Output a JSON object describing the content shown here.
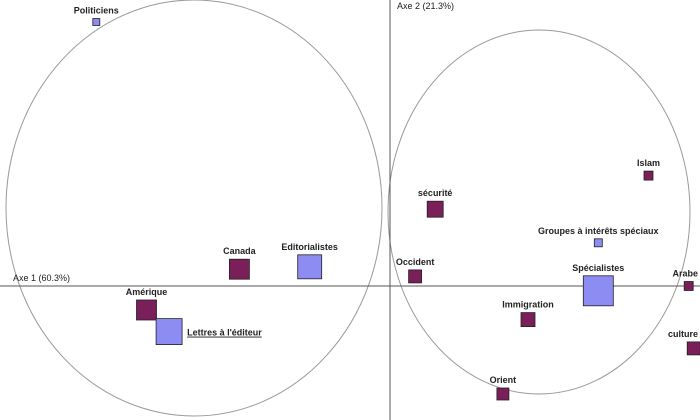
{
  "chart_data": {
    "type": "scatter",
    "title": "",
    "xlabel": "Axe 1 (60.3%)",
    "ylabel": "Axe 2 (21.3%)",
    "xlim": [
      -1.6,
      1.3
    ],
    "ylim": [
      -0.55,
      1.2
    ],
    "grid": false,
    "legend": "none",
    "colors": {
      "modalities": "#7a1f5a",
      "sources": "#8c8cf2",
      "marker_border": "#222222",
      "ellipse": "#999999",
      "axis": "#555555"
    },
    "series": [
      {
        "points": [
          {
            "label": "Canada",
            "x": -0.6,
            "y": 0.07,
            "weight": 20
          },
          {
            "label": "Amérique",
            "x": -0.97,
            "y": -0.1,
            "weight": 20
          },
          {
            "label": "sécurité",
            "x": 0.18,
            "y": 0.32,
            "weight": 16
          },
          {
            "label": "Islam",
            "x": 1.03,
            "y": 0.46,
            "weight": 9
          },
          {
            "label": "Occident",
            "x": 0.1,
            "y": 0.04,
            "weight": 13
          },
          {
            "label": "Immigration",
            "x": 0.55,
            "y": -0.14,
            "weight": 14
          },
          {
            "label": "Orient",
            "x": 0.45,
            "y": -0.45,
            "weight": 12
          },
          {
            "label": "Arabe",
            "x": 1.19,
            "y": 0.0,
            "weight": 9
          },
          {
            "label": "culture",
            "x": 1.21,
            "y": -0.26,
            "weight": 13
          }
        ]
      },
      {
        "points": [
          {
            "label": "Politiciens",
            "x": -1.17,
            "y": 1.1,
            "weight": 7
          },
          {
            "label": "Editorialistes",
            "x": -0.32,
            "y": 0.08,
            "weight": 24
          },
          {
            "label": "Lettres à l'éditeur",
            "x": -0.88,
            "y": -0.19,
            "weight": 26
          },
          {
            "label": "Groupes à intérêts spéciaux",
            "x": 0.83,
            "y": 0.18,
            "weight": 8
          },
          {
            "label": "Spécialistes",
            "x": 0.83,
            "y": -0.02,
            "weight": 30
          }
        ]
      }
    ]
  }
}
